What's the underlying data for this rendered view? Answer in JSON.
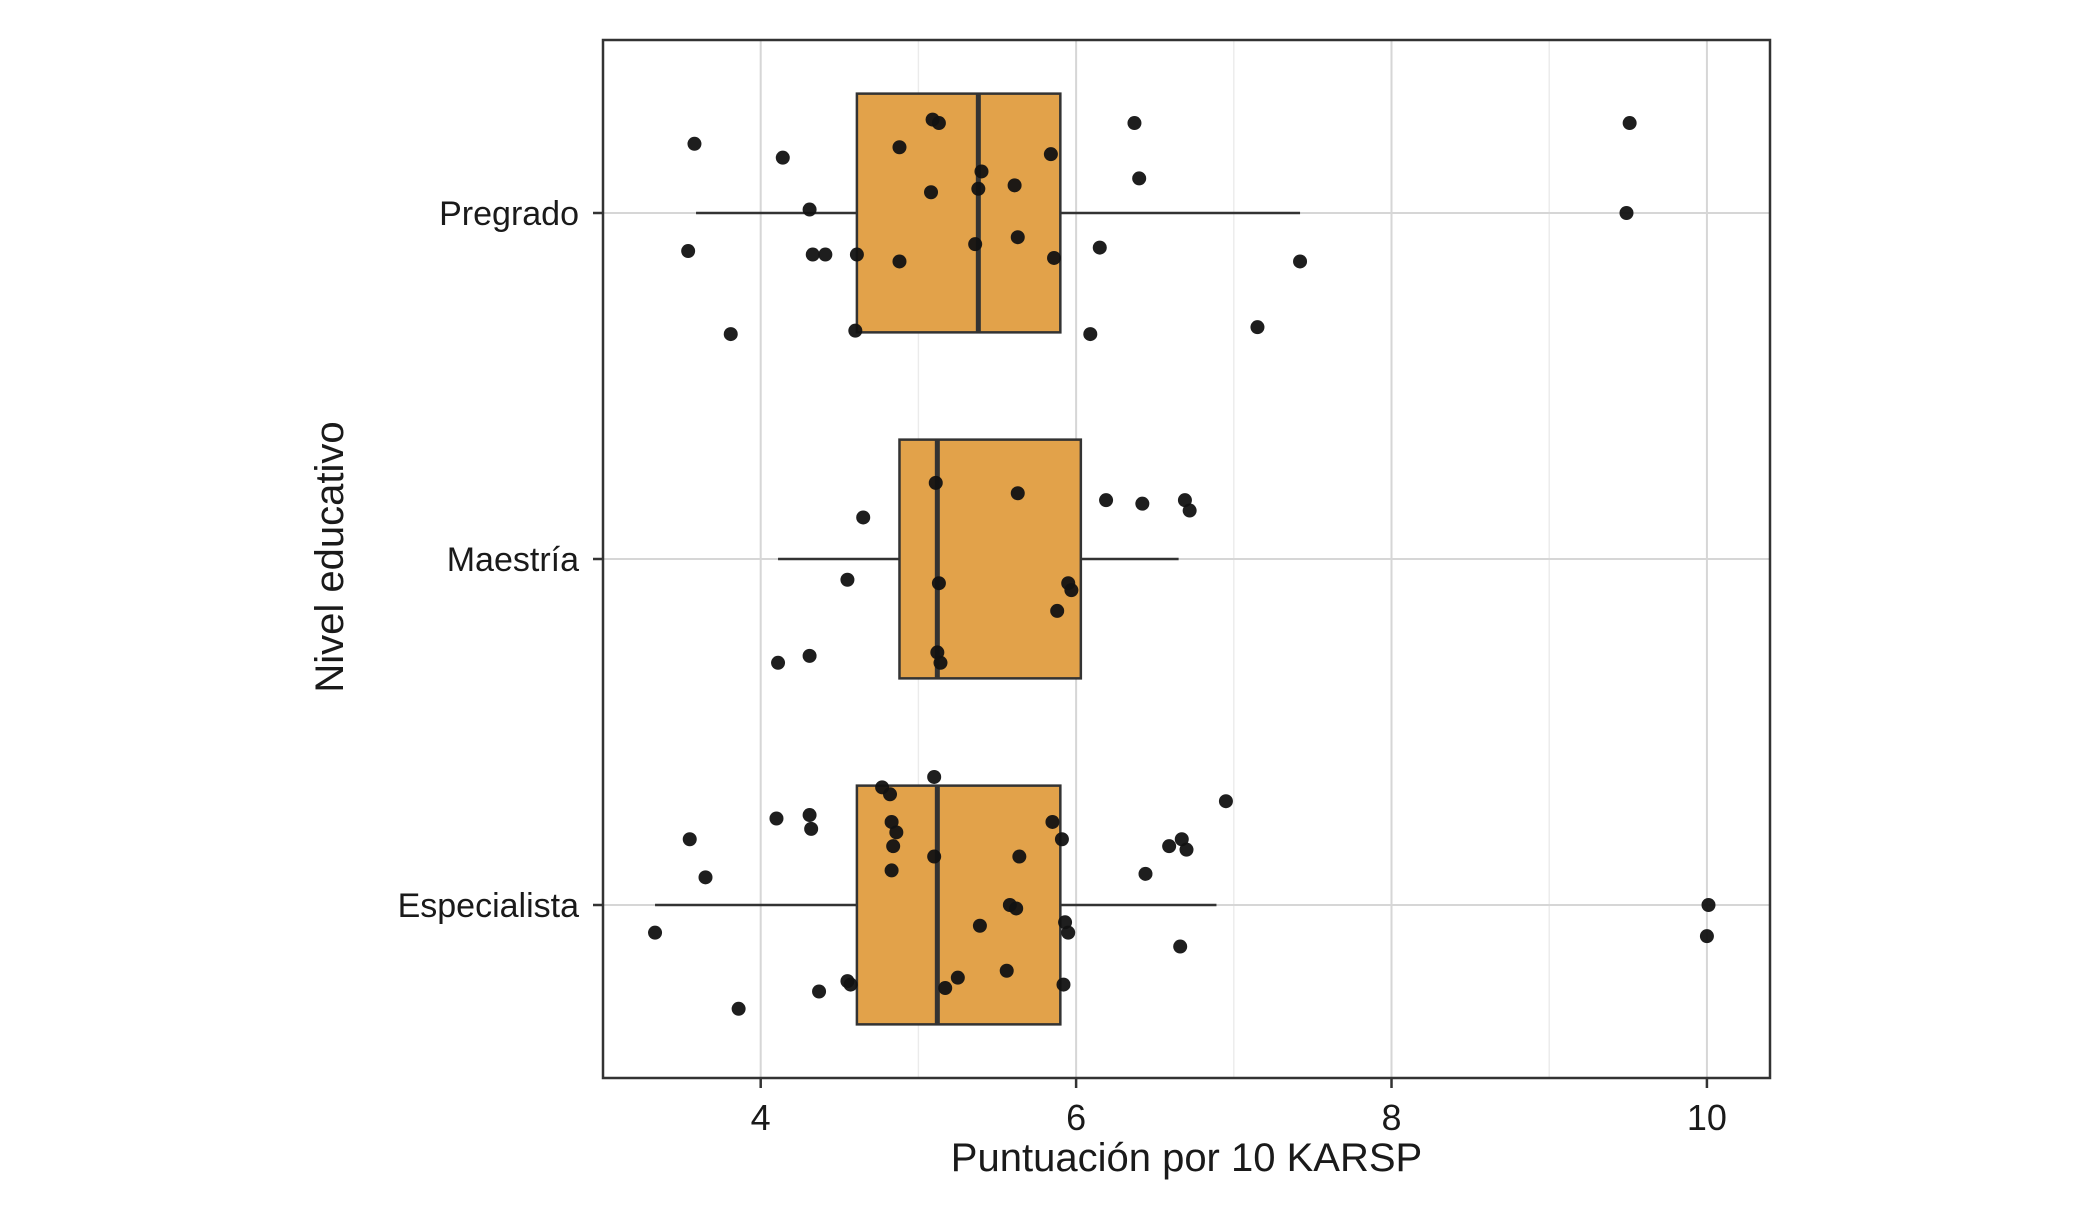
{
  "figure": {
    "background": "#ffffff"
  },
  "chart_data": {
    "type": "boxplot",
    "orientation": "horizontal",
    "title": "",
    "xlabel": "Puntuación por 10 KARSP",
    "ylabel": "Nivel educativo",
    "x_domain": [
      3.0,
      10.4
    ],
    "x_ticks": [
      4,
      6,
      8,
      10
    ],
    "x_minor_ticks": [
      5,
      7,
      9
    ],
    "categories": [
      "Pregrado",
      "Maestría",
      "Especialista"
    ],
    "grid": true,
    "legend": "none",
    "colors": {
      "background": "#ffffff",
      "box_fill": "#E2A24A",
      "box_stroke": "#333333",
      "point": "#121212",
      "grid_major": "#d6d6d6",
      "grid_minor": "#ebebeb",
      "axis": "#333333",
      "text": "#1a1a1a"
    },
    "boxes": [
      {
        "category": "Pregrado",
        "whisker_low": 3.59,
        "q1": 4.61,
        "median": 5.38,
        "q3": 5.9,
        "whisker_high": 7.42
      },
      {
        "category": "Maestría",
        "whisker_low": 4.11,
        "q1": 4.88,
        "median": 5.12,
        "q3": 6.03,
        "whisker_high": 6.65
      },
      {
        "category": "Especialista",
        "whisker_low": 3.33,
        "q1": 4.61,
        "median": 5.12,
        "q3": 5.9,
        "whisker_high": 6.89
      }
    ],
    "points_format": "c = category index into categories[], x = KARSP score, j = vertical jitter as fraction of category band (negative = up)",
    "points": [
      {
        "c": 0,
        "x": 6.37,
        "j": -0.26
      },
      {
        "c": 0,
        "x": 9.51,
        "j": -0.26
      },
      {
        "c": 0,
        "x": 3.58,
        "j": -0.2
      },
      {
        "c": 0,
        "x": 4.14,
        "j": -0.16
      },
      {
        "c": 0,
        "x": 4.88,
        "j": -0.19
      },
      {
        "c": 0,
        "x": 5.09,
        "j": -0.27
      },
      {
        "c": 0,
        "x": 5.13,
        "j": -0.26
      },
      {
        "c": 0,
        "x": 5.4,
        "j": -0.12
      },
      {
        "c": 0,
        "x": 5.84,
        "j": -0.17
      },
      {
        "c": 0,
        "x": 6.4,
        "j": -0.1
      },
      {
        "c": 0,
        "x": 9.49,
        "j": 0.0
      },
      {
        "c": 0,
        "x": 4.31,
        "j": -0.01
      },
      {
        "c": 0,
        "x": 5.08,
        "j": -0.06
      },
      {
        "c": 0,
        "x": 5.38,
        "j": -0.07
      },
      {
        "c": 0,
        "x": 5.61,
        "j": -0.08
      },
      {
        "c": 0,
        "x": 5.36,
        "j": 0.09
      },
      {
        "c": 0,
        "x": 5.63,
        "j": 0.07
      },
      {
        "c": 0,
        "x": 3.54,
        "j": 0.11
      },
      {
        "c": 0,
        "x": 4.33,
        "j": 0.12
      },
      {
        "c": 0,
        "x": 4.41,
        "j": 0.12
      },
      {
        "c": 0,
        "x": 4.61,
        "j": 0.12
      },
      {
        "c": 0,
        "x": 4.88,
        "j": 0.14
      },
      {
        "c": 0,
        "x": 5.86,
        "j": 0.13
      },
      {
        "c": 0,
        "x": 6.15,
        "j": 0.1
      },
      {
        "c": 0,
        "x": 7.42,
        "j": 0.14
      },
      {
        "c": 0,
        "x": 3.81,
        "j": 0.35
      },
      {
        "c": 0,
        "x": 4.6,
        "j": 0.34
      },
      {
        "c": 0,
        "x": 6.09,
        "j": 0.35
      },
      {
        "c": 0,
        "x": 7.15,
        "j": 0.33
      },
      {
        "c": 1,
        "x": 5.11,
        "j": -0.22
      },
      {
        "c": 1,
        "x": 5.63,
        "j": -0.19
      },
      {
        "c": 1,
        "x": 6.19,
        "j": -0.17
      },
      {
        "c": 1,
        "x": 6.42,
        "j": -0.16
      },
      {
        "c": 1,
        "x": 6.69,
        "j": -0.17
      },
      {
        "c": 1,
        "x": 6.72,
        "j": -0.14
      },
      {
        "c": 1,
        "x": 4.65,
        "j": -0.12
      },
      {
        "c": 1,
        "x": 4.55,
        "j": 0.06
      },
      {
        "c": 1,
        "x": 5.13,
        "j": 0.07
      },
      {
        "c": 1,
        "x": 5.95,
        "j": 0.07
      },
      {
        "c": 1,
        "x": 5.97,
        "j": 0.09
      },
      {
        "c": 1,
        "x": 5.88,
        "j": 0.15
      },
      {
        "c": 1,
        "x": 4.11,
        "j": 0.3
      },
      {
        "c": 1,
        "x": 4.31,
        "j": 0.28
      },
      {
        "c": 1,
        "x": 5.12,
        "j": 0.27
      },
      {
        "c": 1,
        "x": 5.14,
        "j": 0.3
      },
      {
        "c": 2,
        "x": 5.1,
        "j": -0.37
      },
      {
        "c": 2,
        "x": 4.77,
        "j": -0.34
      },
      {
        "c": 2,
        "x": 4.82,
        "j": -0.32
      },
      {
        "c": 2,
        "x": 6.95,
        "j": -0.3
      },
      {
        "c": 2,
        "x": 4.1,
        "j": -0.25
      },
      {
        "c": 2,
        "x": 4.31,
        "j": -0.26
      },
      {
        "c": 2,
        "x": 4.32,
        "j": -0.22
      },
      {
        "c": 2,
        "x": 4.83,
        "j": -0.24
      },
      {
        "c": 2,
        "x": 4.86,
        "j": -0.21
      },
      {
        "c": 2,
        "x": 5.85,
        "j": -0.24
      },
      {
        "c": 2,
        "x": 3.55,
        "j": -0.19
      },
      {
        "c": 2,
        "x": 4.84,
        "j": -0.17
      },
      {
        "c": 2,
        "x": 5.1,
        "j": -0.14
      },
      {
        "c": 2,
        "x": 5.64,
        "j": -0.14
      },
      {
        "c": 2,
        "x": 5.91,
        "j": -0.19
      },
      {
        "c": 2,
        "x": 6.59,
        "j": -0.17
      },
      {
        "c": 2,
        "x": 6.67,
        "j": -0.19
      },
      {
        "c": 2,
        "x": 6.7,
        "j": -0.16
      },
      {
        "c": 2,
        "x": 3.65,
        "j": -0.08
      },
      {
        "c": 2,
        "x": 4.83,
        "j": -0.1
      },
      {
        "c": 2,
        "x": 6.44,
        "j": -0.09
      },
      {
        "c": 2,
        "x": 5.58,
        "j": 0.0
      },
      {
        "c": 2,
        "x": 5.62,
        "j": 0.01
      },
      {
        "c": 2,
        "x": 3.33,
        "j": 0.08
      },
      {
        "c": 2,
        "x": 5.39,
        "j": 0.06
      },
      {
        "c": 2,
        "x": 5.93,
        "j": 0.05
      },
      {
        "c": 2,
        "x": 5.95,
        "j": 0.08
      },
      {
        "c": 2,
        "x": 6.66,
        "j": 0.12
      },
      {
        "c": 2,
        "x": 10.01,
        "j": 0.0
      },
      {
        "c": 2,
        "x": 10.0,
        "j": 0.09
      },
      {
        "c": 2,
        "x": 4.37,
        "j": 0.25
      },
      {
        "c": 2,
        "x": 4.55,
        "j": 0.22
      },
      {
        "c": 2,
        "x": 4.57,
        "j": 0.23
      },
      {
        "c": 2,
        "x": 5.17,
        "j": 0.24
      },
      {
        "c": 2,
        "x": 5.25,
        "j": 0.21
      },
      {
        "c": 2,
        "x": 5.56,
        "j": 0.19
      },
      {
        "c": 2,
        "x": 5.92,
        "j": 0.23
      },
      {
        "c": 2,
        "x": 3.86,
        "j": 0.3
      }
    ]
  }
}
